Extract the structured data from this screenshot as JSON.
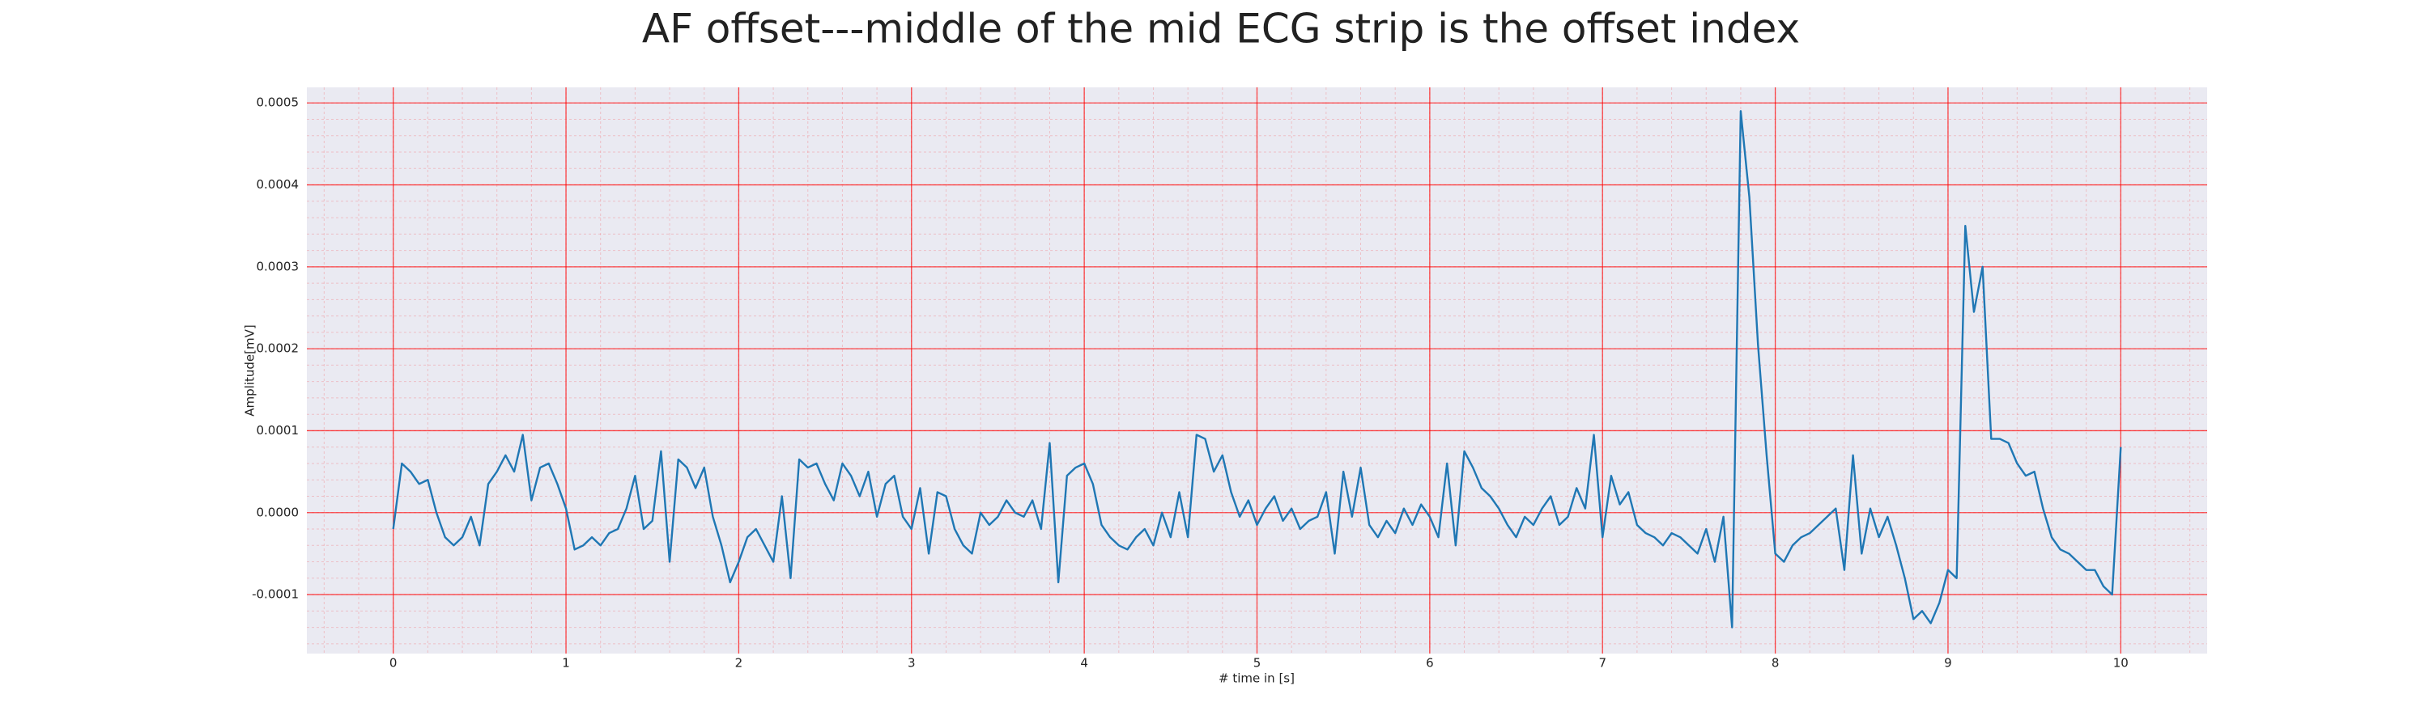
{
  "chart_data": {
    "type": "line",
    "title": "AF offset---middle of the mid ECG strip is the offset index",
    "xlabel": "# time in [s]",
    "ylabel": "Amplitude[mV]",
    "color": "#1f77b4",
    "background": "#eaeaf2",
    "grid": true,
    "grid_color": "#ff0000",
    "xlim": [
      -0.5,
      10.5
    ],
    "ylim": [
      -0.000172,
      0.000519
    ],
    "xticks": [
      0,
      1,
      2,
      3,
      4,
      5,
      6,
      7,
      8,
      9,
      10
    ],
    "yticks": [
      -0.0001,
      {
        "value": 0,
        "label": "0.0000"
      },
      0.0001,
      0.0002,
      0.0003,
      0.0004,
      0.0005
    ],
    "x": [
      0,
      0.05,
      0.1,
      0.15,
      0.2,
      0.25,
      0.3,
      0.35,
      0.4,
      0.45,
      0.5,
      0.55,
      0.6,
      0.65,
      0.7,
      0.75,
      0.8,
      0.85,
      0.9,
      0.95,
      1,
      1.05,
      1.1,
      1.15,
      1.2,
      1.25,
      1.3,
      1.35,
      1.4,
      1.45,
      1.5,
      1.55,
      1.6,
      1.65,
      1.7,
      1.75,
      1.8,
      1.85,
      1.9,
      1.95,
      2,
      2.05,
      2.1,
      2.15,
      2.2,
      2.25,
      2.3,
      2.35,
      2.4,
      2.45,
      2.5,
      2.55,
      2.6,
      2.65,
      2.7,
      2.75,
      2.8,
      2.85,
      2.9,
      2.95,
      3,
      3.05,
      3.1,
      3.15,
      3.2,
      3.25,
      3.3,
      3.35,
      3.4,
      3.45,
      3.5,
      3.55,
      3.6,
      3.65,
      3.7,
      3.75,
      3.8,
      3.85,
      3.9,
      3.95,
      4,
      4.05,
      4.1,
      4.15,
      4.2,
      4.25,
      4.3,
      4.35,
      4.4,
      4.45,
      4.5,
      4.55,
      4.6,
      4.65,
      4.7,
      4.75,
      4.8,
      4.85,
      4.9,
      4.95,
      5,
      5.05,
      5.1,
      5.15,
      5.2,
      5.25,
      5.3,
      5.35,
      5.4,
      5.45,
      5.5,
      5.55,
      5.6,
      5.65,
      5.7,
      5.75,
      5.8,
      5.85,
      5.9,
      5.95,
      6,
      6.05,
      6.1,
      6.15,
      6.2,
      6.25,
      6.3,
      6.35,
      6.4,
      6.45,
      6.5,
      6.55,
      6.6,
      6.65,
      6.7,
      6.75,
      6.8,
      6.85,
      6.9,
      6.95,
      7,
      7.05,
      7.1,
      7.15,
      7.2,
      7.25,
      7.3,
      7.35,
      7.4,
      7.45,
      7.5,
      7.55,
      7.6,
      7.65,
      7.7,
      7.75,
      7.8,
      7.85,
      7.9,
      7.95,
      8,
      8.05,
      8.1,
      8.15,
      8.2,
      8.25,
      8.3,
      8.35,
      8.4,
      8.45,
      8.5,
      8.55,
      8.6,
      8.65,
      8.7,
      8.75,
      8.8,
      8.85,
      8.9,
      8.95,
      9,
      9.05,
      9.1,
      9.15,
      9.2,
      9.25,
      9.3,
      9.35,
      9.4,
      9.45,
      9.5,
      9.55,
      9.6,
      9.65,
      9.7,
      9.75,
      9.8,
      9.85,
      9.9,
      9.95,
      10
    ],
    "values": [
      -2e-05,
      6e-05,
      5e-05,
      3.5e-05,
      4e-05,
      0,
      -3e-05,
      -4e-05,
      -3e-05,
      -5e-06,
      -4e-05,
      3.5e-05,
      5e-05,
      7e-05,
      5e-05,
      9.5e-05,
      1.5e-05,
      5.5e-05,
      6e-05,
      3.5e-05,
      5e-06,
      -4.5e-05,
      -4e-05,
      -3e-05,
      -4e-05,
      -2.5e-05,
      -2e-05,
      5e-06,
      4.5e-05,
      -2e-05,
      -1e-05,
      7.5e-05,
      -6e-05,
      6.5e-05,
      5.5e-05,
      3e-05,
      5.5e-05,
      -5e-06,
      -4e-05,
      -8.5e-05,
      -6e-05,
      -3e-05,
      -2e-05,
      -4e-05,
      -6e-05,
      2e-05,
      -8e-05,
      6.5e-05,
      5.5e-05,
      6e-05,
      3.5e-05,
      1.5e-05,
      6e-05,
      4.5e-05,
      2e-05,
      5e-05,
      -5e-06,
      3.5e-05,
      4.5e-05,
      -5e-06,
      -2e-05,
      3e-05,
      -5e-05,
      2.5e-05,
      2e-05,
      -2e-05,
      -4e-05,
      -5e-05,
      0,
      -1.5e-05,
      -5e-06,
      1.5e-05,
      0,
      -5e-06,
      1.5e-05,
      -2e-05,
      8.5e-05,
      -8.5e-05,
      4.5e-05,
      5.5e-05,
      6e-05,
      3.5e-05,
      -1.5e-05,
      -3e-05,
      -4e-05,
      -4.5e-05,
      -3e-05,
      -2e-05,
      -4e-05,
      0,
      -3e-05,
      2.5e-05,
      -3e-05,
      9.5e-05,
      9e-05,
      5e-05,
      7e-05,
      2.5e-05,
      -5e-06,
      1.5e-05,
      -1.5e-05,
      5e-06,
      2e-05,
      -1e-05,
      5e-06,
      -2e-05,
      -1e-05,
      -5e-06,
      2.5e-05,
      -5e-05,
      5e-05,
      -5e-06,
      5.5e-05,
      -1.5e-05,
      -3e-05,
      -1e-05,
      -2.5e-05,
      5e-06,
      -1.5e-05,
      1e-05,
      -5e-06,
      -3e-05,
      6e-05,
      -4e-05,
      7.5e-05,
      5.5e-05,
      3e-05,
      2e-05,
      5e-06,
      -1.5e-05,
      -3e-05,
      -5e-06,
      -1.5e-05,
      5e-06,
      2e-05,
      -1.5e-05,
      -5e-06,
      3e-05,
      5e-06,
      9.5e-05,
      -3e-05,
      4.5e-05,
      1e-05,
      2.5e-05,
      -1.5e-05,
      -2.5e-05,
      -3e-05,
      -4e-05,
      -2.5e-05,
      -3e-05,
      -4e-05,
      -5e-05,
      -2e-05,
      -6e-05,
      -5e-06,
      -0.00014,
      0.00049,
      0.000385,
      0.000205,
      7e-05,
      -5e-05,
      -6e-05,
      -4e-05,
      -3e-05,
      -2.5e-05,
      -1.5e-05,
      -5e-06,
      5e-06,
      -7e-05,
      7e-05,
      -5e-05,
      5e-06,
      -3e-05,
      -5e-06,
      -4e-05,
      -8e-05,
      -0.00013,
      -0.00012,
      -0.000135,
      -0.00011,
      -7e-05,
      -8e-05,
      0.00035,
      0.000245,
      0.0003,
      9e-05,
      9e-05,
      8.5e-05,
      6e-05,
      4.5e-05,
      5e-05,
      5e-06,
      -3e-05,
      -4.5e-05,
      -5e-05,
      -6e-05,
      -7e-05,
      -7e-05,
      -9e-05,
      -0.0001,
      8e-05
    ]
  }
}
